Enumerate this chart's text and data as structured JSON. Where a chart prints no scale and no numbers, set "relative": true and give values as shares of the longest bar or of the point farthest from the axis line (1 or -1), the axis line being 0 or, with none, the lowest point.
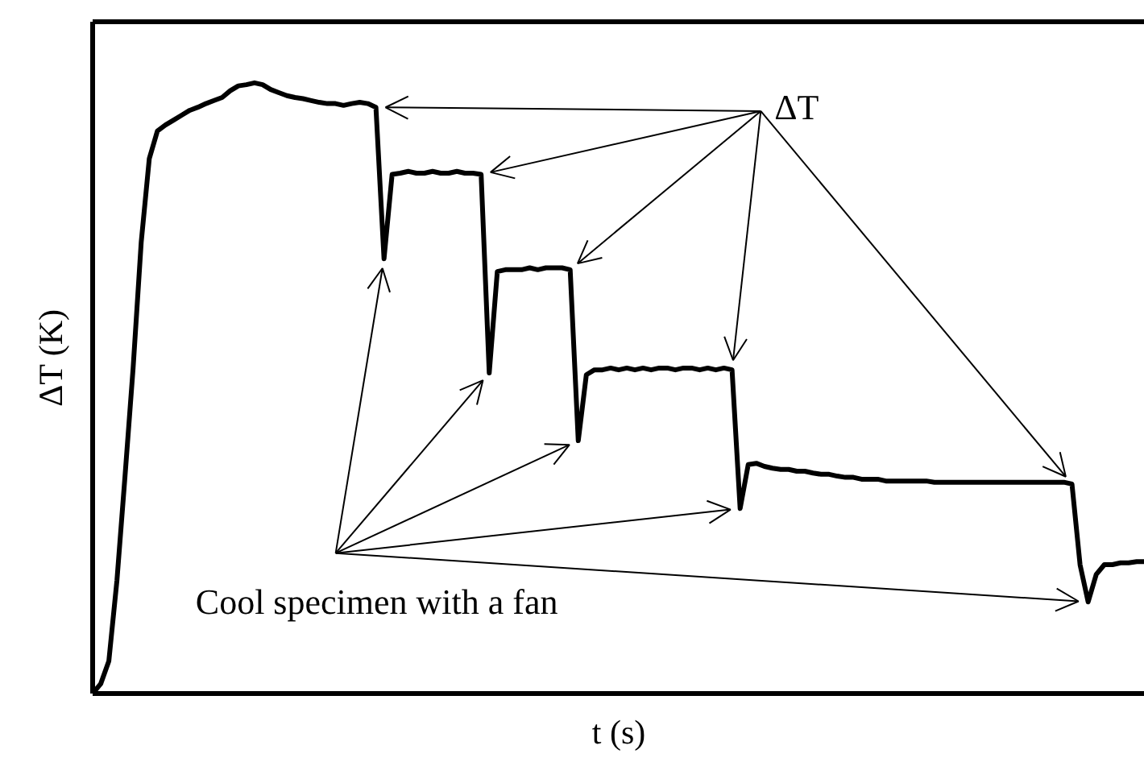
{
  "chart_data": {
    "type": "line",
    "relative": true,
    "xlabel": "t (s)",
    "ylabel": "ΔT (K)",
    "annotations": [
      "ΔT",
      "Cool specimen with a fan"
    ],
    "color": "#000000",
    "line_style": "solid",
    "categories": [
      null,
      null,
      null,
      null,
      null,
      null,
      null,
      null,
      null,
      null,
      null,
      null,
      null,
      null,
      null,
      null,
      null,
      null,
      null,
      null,
      null,
      null,
      null,
      null,
      null,
      null,
      null,
      null,
      null,
      null,
      null,
      null,
      null,
      null,
      null,
      null,
      null,
      null,
      null,
      null,
      null,
      null,
      null,
      null,
      null,
      null,
      null,
      null,
      null,
      null,
      null,
      null,
      null,
      null,
      null,
      null,
      null,
      null,
      null,
      null,
      null,
      null,
      null,
      null,
      null,
      null,
      null,
      null,
      null,
      null,
      null,
      null,
      null,
      null,
      null,
      null,
      null,
      null,
      null,
      null,
      null,
      null,
      null,
      null,
      null,
      null,
      null,
      null,
      null,
      null,
      null,
      null,
      null,
      null,
      null,
      null,
      null,
      null,
      null,
      null,
      null,
      null,
      null,
      null,
      null,
      null,
      null,
      null,
      null,
      null,
      null,
      null,
      null,
      null,
      null,
      null,
      null,
      null,
      null,
      null,
      null,
      null,
      null,
      null,
      null,
      null,
      null,
      null,
      null,
      null,
      null
    ],
    "values": [
      0,
      0.016,
      0.053,
      0.185,
      0.356,
      0.533,
      0.739,
      0.876,
      0.921,
      0.931,
      0.939,
      0.947,
      0.955,
      0.96,
      0.966,
      0.971,
      0.976,
      0.987,
      0.995,
      0.997,
      1.0,
      0.997,
      0.989,
      0.984,
      0.979,
      0.976,
      0.974,
      0.971,
      0.968,
      0.966,
      0.966,
      0.963,
      0.966,
      0.968,
      0.966,
      0.96,
      0.712,
      0.85,
      0.852,
      0.855,
      0.852,
      0.852,
      0.855,
      0.852,
      0.852,
      0.855,
      0.852,
      0.852,
      0.85,
      0.525,
      0.691,
      0.694,
      0.694,
      0.694,
      0.697,
      0.694,
      0.697,
      0.697,
      0.697,
      0.694,
      0.414,
      0.522,
      0.53,
      0.53,
      0.533,
      0.53,
      0.533,
      0.53,
      0.533,
      0.53,
      0.533,
      0.533,
      0.53,
      0.533,
      0.533,
      0.53,
      0.533,
      0.53,
      0.533,
      0.53,
      0.303,
      0.375,
      0.377,
      0.372,
      0.369,
      0.367,
      0.367,
      0.364,
      0.364,
      0.361,
      0.359,
      0.359,
      0.356,
      0.354,
      0.354,
      0.351,
      0.351,
      0.351,
      0.348,
      0.348,
      0.348,
      0.348,
      0.348,
      0.348,
      0.346,
      0.346,
      0.346,
      0.346,
      0.346,
      0.346,
      0.346,
      0.346,
      0.346,
      0.346,
      0.346,
      0.346,
      0.346,
      0.346,
      0.346,
      0.346,
      0.346,
      0.343,
      0.211,
      0.15,
      0.195,
      0.211,
      0.211,
      0.214,
      0.214,
      0.216,
      0.216
    ]
  }
}
